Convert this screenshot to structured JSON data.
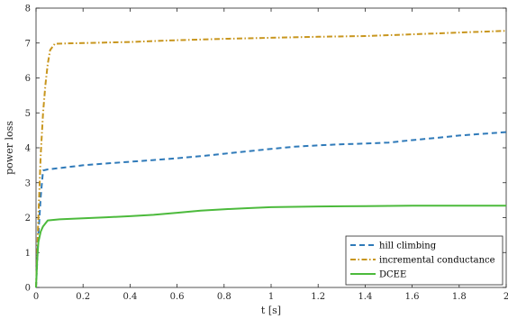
{
  "chart_data": {
    "type": "line",
    "xlabel": "t [s]",
    "ylabel": "power loss",
    "xlim": [
      0,
      2
    ],
    "ylim": [
      0,
      8
    ],
    "xticks": [
      0,
      0.2,
      0.4,
      0.6,
      0.8,
      1,
      1.2,
      1.4,
      1.6,
      1.8,
      2
    ],
    "yticks": [
      0,
      1,
      2,
      3,
      4,
      5,
      6,
      7,
      8
    ],
    "xtick_labels": [
      "0",
      "0.2",
      "0.4",
      "0.6",
      "0.8",
      "1",
      "1.2",
      "1.4",
      "1.6",
      "1.8",
      "2"
    ],
    "ytick_labels": [
      "0",
      "1",
      "2",
      "3",
      "4",
      "5",
      "6",
      "7",
      "8"
    ],
    "grid": false,
    "legend_position": "bottom-right",
    "series": [
      {
        "name": "hill climbing",
        "color": "#2f7ab9",
        "style": "dashed",
        "x": [
          0,
          0.01,
          0.02,
          0.03,
          0.05,
          0.1,
          0.2,
          0.3,
          0.4,
          0.5,
          0.6,
          0.7,
          0.8,
          0.9,
          1.0,
          1.1,
          1.2,
          1.3,
          1.4,
          1.5,
          1.6,
          1.7,
          1.8,
          1.9,
          2.0
        ],
        "values": [
          0,
          1.5,
          2.6,
          3.35,
          3.38,
          3.42,
          3.5,
          3.55,
          3.6,
          3.65,
          3.7,
          3.76,
          3.83,
          3.9,
          3.97,
          4.03,
          4.07,
          4.1,
          4.12,
          4.15,
          4.22,
          4.28,
          4.35,
          4.4,
          4.45
        ]
      },
      {
        "name": "incremental conductance",
        "color": "#c8961e",
        "style": "dashdot",
        "x": [
          0,
          0.01,
          0.02,
          0.03,
          0.04,
          0.05,
          0.06,
          0.08,
          0.2,
          0.4,
          0.6,
          0.8,
          1.0,
          1.2,
          1.4,
          1.6,
          1.8,
          2.0
        ],
        "values": [
          0,
          2.0,
          3.8,
          5.0,
          5.8,
          6.4,
          6.8,
          6.98,
          7.0,
          7.03,
          7.08,
          7.12,
          7.15,
          7.18,
          7.2,
          7.25,
          7.3,
          7.35
        ]
      },
      {
        "name": "DCEE",
        "color": "#4cba3c",
        "style": "solid",
        "x": [
          0,
          0.005,
          0.01,
          0.02,
          0.03,
          0.05,
          0.1,
          0.2,
          0.3,
          0.4,
          0.5,
          0.6,
          0.7,
          0.8,
          0.9,
          1.0,
          1.2,
          1.4,
          1.6,
          1.8,
          2.0
        ],
        "values": [
          0,
          0.8,
          1.3,
          1.6,
          1.75,
          1.92,
          1.95,
          1.98,
          2.01,
          2.04,
          2.08,
          2.14,
          2.2,
          2.24,
          2.27,
          2.3,
          2.32,
          2.33,
          2.34,
          2.34,
          2.34
        ]
      }
    ]
  }
}
